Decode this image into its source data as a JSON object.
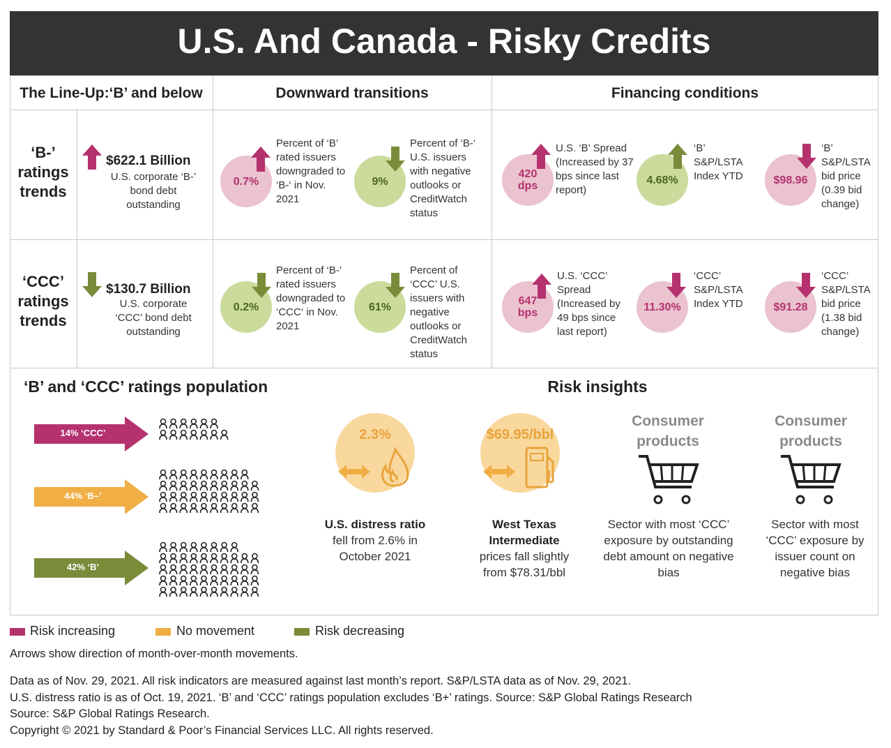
{
  "header": {
    "title": "U.S. And Canada - Risky Credits"
  },
  "columns": [
    "The Line-Up:‘B’ and below",
    "Downward transitions",
    "Financing conditions"
  ],
  "rows": [
    {
      "label": "‘B-’ ratings trends",
      "lineup": {
        "amount": "$622.1 Billion",
        "description": "U.S. corporate ‘B-’ bond debt outstanding"
      },
      "transitions": [
        {
          "value": "0.7%",
          "description": "Percent of ‘B’ rated issuers downgraded to ‘B-‘ in Nov. 2021"
        },
        {
          "value": "9%",
          "description": "Percent of ‘B-‘ U.S. issuers with negative outlooks or CreditWatch status"
        }
      ],
      "financing": [
        {
          "value": "420 dps",
          "description": "U.S. ‘B’ Spread (Increased by 37 bps since last report)"
        },
        {
          "value": "4.68%",
          "description": "‘B’ S&P/LSTA Index YTD"
        },
        {
          "value": "$98.96",
          "description": "‘B’ S&P/LSTA bid price (0.39 bid change)"
        }
      ]
    },
    {
      "label": "‘CCC’ ratings trends",
      "lineup": {
        "amount": "$130.7 Billion",
        "description": "U.S. corporate ‘CCC’ bond debt outstanding"
      },
      "transitions": [
        {
          "value": "0.2%",
          "description": "Percent of ‘B-’ rated issuers downgraded to ‘CCC‘ in Nov. 2021"
        },
        {
          "value": "61%",
          "description": "Percent of ‘CCC’ U.S. issuers with negative outlooks or CreditWatch status"
        }
      ],
      "financing": [
        {
          "value": "647 bps",
          "description": "U.S. ‘CCC’ Spread (Increased by 49 bps since last report)"
        },
        {
          "value": "11.30%",
          "description": "‘CCC’ S&P/LSTA Index YTD"
        },
        {
          "value": "$91.28",
          "description": "‘CCC’ S&P/LSTA bid price (1.38 bid change)"
        }
      ]
    }
  ],
  "population": {
    "title": "‘B’ and ‘CCC’ ratings population",
    "groups": [
      "14% ‘CCC’",
      "44% ‘B–’",
      "42% ‘B’"
    ]
  },
  "insights": {
    "title": "Risk insights",
    "items": [
      {
        "value": "2.3%",
        "title": "U.S. distress ratio",
        "description": "fell from 2.6% in October 2021"
      },
      {
        "value": "$69.95/bbl",
        "title": "West Texas Intermediate",
        "description": "prices fall slightly from $78.31/bbl"
      },
      {
        "title": "Consumer products",
        "description": "Sector with most ‘CCC’ exposure by outstanding debt amount on negative bias"
      },
      {
        "title": "Consumer products",
        "description": "Sector with most ‘CCC’ exposure by issuer count on negative bias"
      }
    ]
  },
  "legend": [
    "Risk increasing",
    "No movement",
    "Risk decreasing"
  ],
  "note": "Arrows show direction of month-over-month movements.",
  "footer": [
    "Data as of Nov. 29, 2021. All risk indicators are measured against last month’s report. S&P/LSTA data as of Nov. 29, 2021.",
    "U.S. distress ratio is as of Oct. 19, 2021. ‘B’ and ‘CCC’ ratings population excludes ‘B+’ ratings. Source: S&P Global Ratings Research",
    "Source: S&P Global Ratings Research.",
    "Copyright © 2021 by Standard & Poor’s Financial Services LLC. All rights reserved."
  ]
}
